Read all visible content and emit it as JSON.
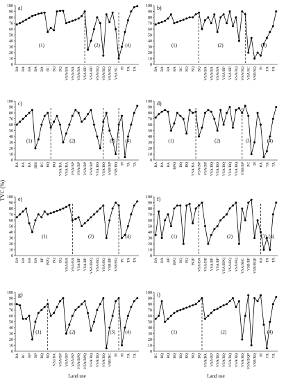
{
  "ylabel": "TVC (%)",
  "chart_data": [
    {
      "type": "line",
      "title": "a)",
      "color": "#000000",
      "ylim": [
        0,
        100
      ],
      "yticks": [
        0,
        10,
        20,
        30,
        40,
        50,
        60,
        70,
        80,
        90,
        100
      ],
      "categories": [
        "BA",
        null,
        "BA",
        null,
        "BA",
        null,
        "BA",
        null,
        "BA",
        null,
        "BC",
        null,
        "BQ",
        null,
        "BQ",
        null,
        "VSA/BA",
        null,
        "VSA/BA",
        null,
        "VSA/BA",
        null,
        "VSA/BP",
        null,
        "VSA/BP",
        null,
        "VSA/BQ",
        null,
        "VSA/BQ",
        null,
        "VSA/BQ",
        null,
        "VSA/SC",
        null,
        "PI",
        null,
        "TA",
        null,
        "TA",
        null
      ],
      "values": [
        68,
        70,
        73,
        76,
        79,
        82,
        84,
        86,
        87,
        88,
        55,
        62,
        58,
        90,
        91,
        91,
        70,
        72,
        74,
        76,
        78,
        82,
        90,
        25,
        40,
        60,
        80,
        70,
        15,
        85,
        72,
        88,
        60,
        10,
        30,
        55,
        75,
        90,
        97,
        99
      ],
      "dividers": [
        22,
        33
      ],
      "zones": [
        {
          "label": "(1)",
          "x": 8
        },
        {
          "label": "(2)",
          "x": 26
        },
        {
          "label": "(4)",
          "x": 36
        }
      ]
    },
    {
      "type": "line",
      "title": "b)",
      "color": "#000000",
      "ylim": [
        0,
        100
      ],
      "yticks": [
        0,
        10,
        20,
        30,
        40,
        50,
        60,
        70,
        80,
        90,
        100
      ],
      "categories": [
        "BA",
        null,
        "BA",
        null,
        "BA",
        null,
        "BA",
        null,
        "BC",
        null,
        "BQ",
        null,
        "BQ",
        null,
        "BQ",
        null,
        "VSA/BA",
        null,
        "VSA/BA",
        null,
        "VSA/BA",
        null,
        "VSA/BP",
        null,
        "VSA/BP",
        null,
        "VSA/BQ",
        null,
        "VSA/BQ",
        null,
        "VSA/SC",
        null,
        "VSB/BQ",
        null,
        "PI",
        null,
        "TA",
        null,
        "TA",
        null
      ],
      "values": [
        68,
        70,
        72,
        74,
        78,
        85,
        70,
        72,
        74,
        76,
        78,
        80,
        80,
        85,
        88,
        60,
        75,
        80,
        70,
        85,
        55,
        80,
        85,
        70,
        90,
        65,
        80,
        40,
        90,
        85,
        20,
        45,
        10,
        20,
        15,
        35,
        45,
        55,
        65,
        90
      ],
      "dividers": [
        14,
        29
      ],
      "zones": [
        {
          "label": "(1)",
          "x": 6
        },
        {
          "label": "(2)",
          "x": 21
        },
        {
          "label": "(4)",
          "x": 35
        }
      ]
    },
    {
      "type": "line",
      "title": "c)",
      "color": "#000000",
      "ylim": [
        0,
        100
      ],
      "yticks": [
        0,
        10,
        20,
        30,
        40,
        50,
        60,
        70,
        80,
        90,
        100
      ],
      "categories": [
        "BA",
        null,
        "BA",
        null,
        "BA",
        null,
        "BBI",
        null,
        "BC",
        null,
        "BQ",
        null,
        "BQ",
        null,
        "VSA/BA",
        null,
        "VSA/BA",
        null,
        "VSA/BP",
        null,
        "VSA/BP",
        null,
        "VSA/BP",
        null,
        "VSA/BP",
        null,
        "VSA/BQ",
        null,
        "VSA/BQ",
        null,
        "VSB/BP",
        null,
        "VSB/BQ",
        null,
        "PI",
        null,
        "TA",
        null,
        "TA",
        null
      ],
      "values": [
        60,
        65,
        70,
        75,
        80,
        85,
        20,
        35,
        60,
        75,
        80,
        55,
        65,
        75,
        60,
        30,
        45,
        60,
        75,
        85,
        80,
        65,
        70,
        78,
        85,
        60,
        40,
        20,
        65,
        80,
        50,
        35,
        10,
        60,
        75,
        5,
        40,
        60,
        80,
        92
      ],
      "dividers": [
        11,
        28,
        33
      ],
      "zones": [
        {
          "label": "(1)",
          "x": 4
        },
        {
          "label": "(2)",
          "x": 18
        },
        {
          "label": "(3)",
          "x": 31
        },
        {
          "label": "(4)",
          "x": 36
        }
      ]
    },
    {
      "type": "line",
      "title": "d)",
      "color": "#000000",
      "ylim": [
        0,
        100
      ],
      "yticks": [
        0,
        10,
        20,
        30,
        40,
        50,
        60,
        70,
        80,
        90,
        100
      ],
      "categories": [
        "BA",
        null,
        "BA",
        null,
        "BA",
        null,
        "BPQ",
        null,
        "BQ",
        null,
        "BQ",
        null,
        "VSA/BA",
        null,
        "VSA/BP",
        null,
        "VSA/BP",
        null,
        "VSA/BQ",
        null,
        "VSA/BQ",
        null,
        "VSA/BQ",
        null,
        "VSA/BQ",
        null,
        "VSA/BQ",
        null,
        "VSB/BP",
        null,
        "PC",
        null,
        "PI",
        null,
        "RA",
        null,
        "TA",
        null,
        "TA",
        null
      ],
      "values": [
        72,
        78,
        82,
        85,
        82,
        50,
        62,
        80,
        75,
        70,
        45,
        85,
        80,
        82,
        40,
        55,
        80,
        85,
        82,
        70,
        50,
        85,
        60,
        80,
        90,
        55,
        85,
        88,
        80,
        92,
        75,
        10,
        30,
        80,
        60,
        5,
        15,
        40,
        70,
        90
      ],
      "dividers": [
        13,
        28
      ],
      "zones": [
        {
          "label": "(1)",
          "x": 5
        },
        {
          "label": "(2)",
          "x": 20
        },
        {
          "label": "(3)",
          "x": 30
        },
        {
          "label": "(4)",
          "x": 37
        }
      ]
    },
    {
      "type": "line",
      "title": "e)",
      "color": "#000000",
      "ylim": [
        0,
        100
      ],
      "yticks": [
        0,
        10,
        20,
        30,
        40,
        50,
        60,
        70,
        80,
        90,
        100
      ],
      "categories": [
        "BA",
        null,
        "BA",
        null,
        "BA",
        null,
        "BA",
        null,
        "BP",
        null,
        "BPQ",
        null,
        "BQ",
        null,
        "BQ",
        null,
        "VSA/BA",
        null,
        "VSA/BA",
        null,
        "VSA/BP",
        null,
        "VSA/BP",
        null,
        "VSA/BPQ",
        null,
        "VSA/BQ",
        null,
        "VSA/BQ",
        null,
        "VSB/BP",
        null,
        "VSB/BQ",
        null,
        "PC",
        null,
        "TA",
        null,
        "TA",
        null
      ],
      "values": [
        65,
        70,
        75,
        80,
        55,
        40,
        60,
        70,
        65,
        75,
        70,
        72,
        74,
        76,
        78,
        80,
        83,
        86,
        60,
        62,
        65,
        50,
        55,
        60,
        65,
        70,
        75,
        80,
        85,
        30,
        60,
        80,
        90,
        85,
        30,
        35,
        50,
        70,
        85,
        92
      ],
      "dividers": [
        18,
        33
      ],
      "zones": [
        {
          "label": "(1)",
          "x": 9
        },
        {
          "label": "(2)",
          "x": 24
        },
        {
          "label": "(4)",
          "x": 36
        }
      ]
    },
    {
      "type": "line",
      "title": "f)",
      "color": "#000000",
      "ylim": [
        0,
        100
      ],
      "yticks": [
        0,
        10,
        20,
        30,
        40,
        50,
        60,
        70,
        80,
        90,
        100
      ],
      "categories": [
        "BA",
        null,
        "BA",
        null,
        "BP",
        null,
        "BPQ",
        null,
        "BQ",
        null,
        "BQ",
        null,
        "BQP",
        null,
        "VSA/BA",
        null,
        "VSA/BII",
        null,
        "VSA/BP",
        null,
        "VSA/BP",
        null,
        "VSA/BPQ",
        null,
        "VSA/BQ",
        null,
        "VSA/BQ",
        null,
        "VSA/SBC",
        null,
        "VSB/BP",
        null,
        "VSB/BQP",
        null,
        "RA",
        null,
        "TA",
        null,
        "TA",
        null
      ],
      "values": [
        35,
        75,
        30,
        60,
        70,
        50,
        80,
        85,
        85,
        20,
        85,
        88,
        55,
        80,
        85,
        90,
        50,
        20,
        35,
        45,
        50,
        60,
        65,
        70,
        80,
        85,
        90,
        20,
        80,
        60,
        90,
        95,
        30,
        60,
        40,
        10,
        30,
        10,
        70,
        90
      ],
      "dividers": [
        14,
        34
      ],
      "zones": [
        {
          "label": "(1)",
          "x": 6
        },
        {
          "label": "(2)",
          "x": 24
        },
        {
          "label": "(3)",
          "x": 35
        },
        {
          "label": "(4)",
          "x": 37.5
        }
      ]
    },
    {
      "type": "line",
      "title": "g)",
      "color": "#000000",
      "ylim": [
        0,
        100
      ],
      "yticks": [
        0,
        10,
        20,
        30,
        40,
        50,
        60,
        70,
        80,
        90,
        100
      ],
      "categories": [
        "BA",
        null,
        "BC",
        null,
        "BP",
        null,
        "BP",
        null,
        "BQ",
        null,
        "BQ",
        null,
        "VSa/BA",
        null,
        "VSA/BP",
        null,
        "VSA/BP",
        null,
        "VSA/BP",
        null,
        "VSA/BPQ",
        null,
        "VSA/BPQ",
        null,
        "VSA/BQ",
        null,
        "VSA/BQ",
        null,
        "VSA/BQ",
        null,
        "VSB/BC",
        null,
        "PI",
        null,
        "PI",
        null,
        "TA",
        null,
        "TA",
        null
      ],
      "values": [
        80,
        78,
        55,
        55,
        60,
        20,
        50,
        65,
        70,
        75,
        80,
        60,
        65,
        75,
        85,
        90,
        30,
        45,
        60,
        70,
        75,
        80,
        85,
        65,
        35,
        50,
        70,
        80,
        90,
        5,
        40,
        60,
        85,
        90,
        10,
        40,
        60,
        75,
        85,
        90
      ],
      "dividers": [
        10,
        33
      ],
      "zones": [
        {
          "label": "(1)",
          "x": 7
        },
        {
          "label": "(2)",
          "x": 18
        },
        {
          "label": "(3)",
          "x": 31
        },
        {
          "label": "(4)",
          "x": 36
        }
      ],
      "xlabel": "Land use"
    },
    {
      "type": "line",
      "title": "i)",
      "color": "#000000",
      "ylim": [
        0,
        100
      ],
      "yticks": [
        0,
        10,
        20,
        30,
        40,
        50,
        60,
        70,
        80,
        90,
        100
      ],
      "categories": [
        "BC",
        null,
        "BQ",
        null,
        "BQ",
        null,
        "BQ",
        null,
        "BQ",
        null,
        "BQ",
        null,
        "BQ",
        null,
        "BQ",
        null,
        "VSA/BA",
        null,
        "VSA/BP",
        null,
        "VSA/BQ",
        null,
        "VSA/BQ",
        null,
        "VSA/BQ",
        null,
        "VSA/BQ",
        null,
        "VSA/BQ",
        null,
        "VSA/BQP",
        null,
        "VSB/BQ",
        null,
        "PI",
        null,
        "TA",
        null,
        "TA",
        null
      ],
      "values": [
        55,
        60,
        85,
        50,
        55,
        60,
        65,
        68,
        70,
        72,
        74,
        76,
        78,
        80,
        85,
        90,
        55,
        60,
        65,
        70,
        72,
        75,
        78,
        80,
        85,
        90,
        75,
        85,
        20,
        60,
        95,
        10,
        90,
        85,
        95,
        45,
        5,
        50,
        80,
        92
      ],
      "dividers": [
        15
      ],
      "zones": [
        {
          "label": "(1)",
          "x": 6
        },
        {
          "label": "(2)",
          "x": 22
        },
        {
          "label": "(4)",
          "x": 37
        }
      ],
      "xlabel": "Land use"
    }
  ]
}
